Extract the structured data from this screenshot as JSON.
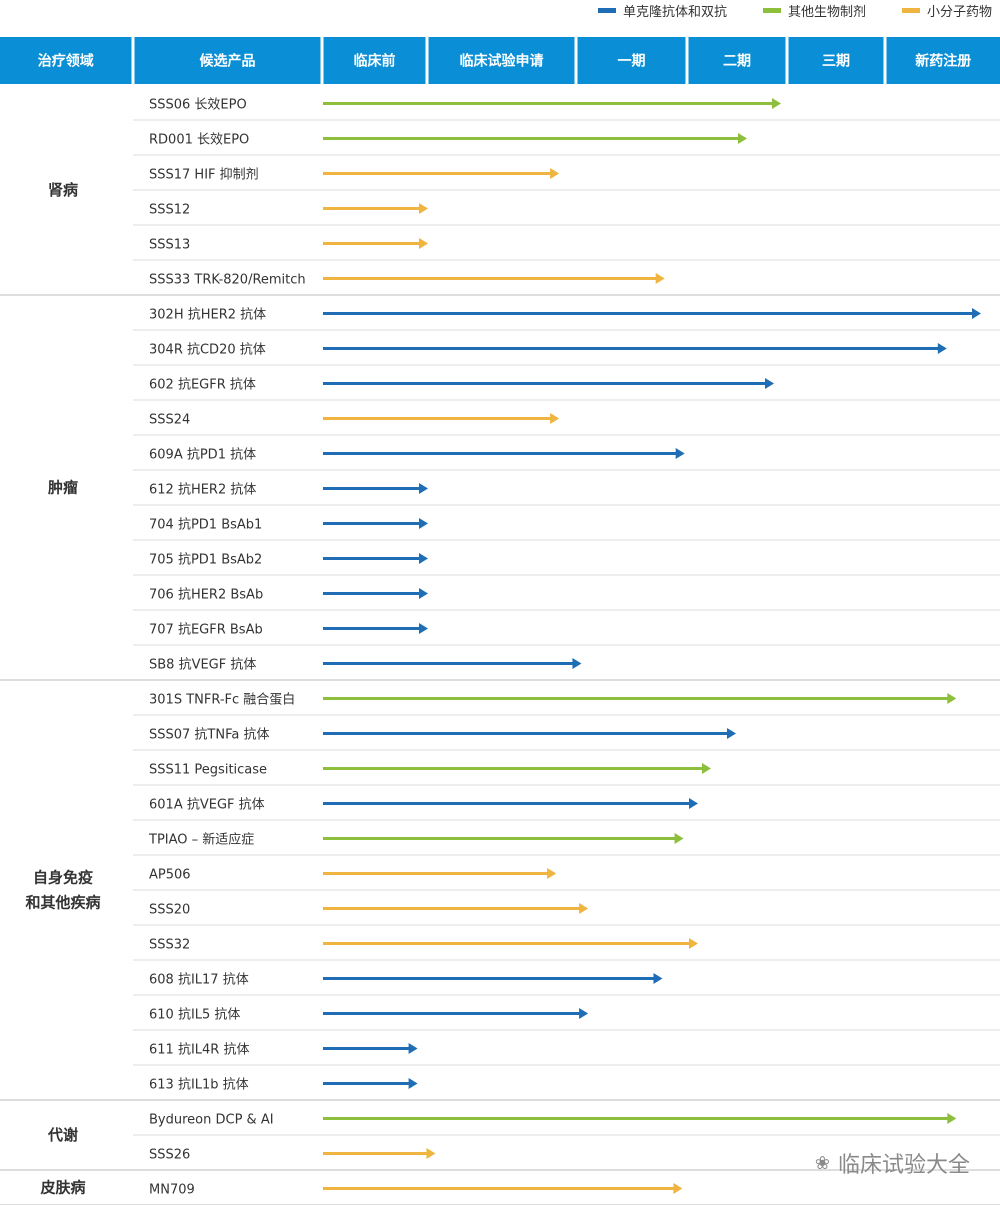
{
  "legend": [
    {
      "label": "单克隆抗体和双抗",
      "color": "#1f6eb5"
    },
    {
      "label": "其他生物制剂",
      "color": "#8dbf3d"
    },
    {
      "label": "小分子药物",
      "color": "#f0b440"
    }
  ],
  "watermark": {
    "text": "临床试验大全",
    "icon": "wechat-icon"
  },
  "chart_data": {
    "type": "bar",
    "orientation": "horizontal",
    "columns": [
      "治疗领域",
      "候选产品",
      "临床前",
      "临床试验申请",
      "一期",
      "二期",
      "三期",
      "新药注册"
    ],
    "stages": [
      "临床前",
      "临床试验申请",
      "一期",
      "二期",
      "三期",
      "新药注册"
    ],
    "x_range": [
      0,
      6
    ],
    "areas": [
      {
        "name": "肾病",
        "products": [
          {
            "name": "SSS06 长效EPO",
            "type": 1,
            "progress": 3.93
          },
          {
            "name": "RD001 长效EPO",
            "type": 1,
            "progress": 3.59
          },
          {
            "name": "SSS17 HIF 抑制剂",
            "type": 2,
            "progress": 1.88
          },
          {
            "name": "SSS12",
            "type": 2,
            "progress": 1.0
          },
          {
            "name": "SSS13",
            "type": 2,
            "progress": 1.0
          },
          {
            "name": "SSS33 TRK-820/Remitch",
            "type": 2,
            "progress": 2.79
          }
        ]
      },
      {
        "name": "肿瘤",
        "products": [
          {
            "name": "302H 抗HER2 抗体",
            "type": 0,
            "progress": 6.0
          },
          {
            "name": "304R 抗CD20 抗体",
            "type": 0,
            "progress": 5.64
          },
          {
            "name": "602 抗EGFR 抗体",
            "type": 0,
            "progress": 3.86
          },
          {
            "name": "SSS24",
            "type": 2,
            "progress": 1.88
          },
          {
            "name": "609A 抗PD1 抗体",
            "type": 0,
            "progress": 2.97
          },
          {
            "name": "612 抗HER2 抗体",
            "type": 0,
            "progress": 1.0
          },
          {
            "name": "704 抗PD1 BsAb1",
            "type": 0,
            "progress": 1.0
          },
          {
            "name": "705 抗PD1 BsAb2",
            "type": 0,
            "progress": 1.0
          },
          {
            "name": "706 抗HER2 BsAb",
            "type": 0,
            "progress": 1.0
          },
          {
            "name": "707 抗EGFR BsAb",
            "type": 0,
            "progress": 1.0
          },
          {
            "name": "SB8 抗VEGF 抗体",
            "type": 0,
            "progress": 2.04
          }
        ]
      },
      {
        "name": "自身免疫\n和其他疾病",
        "products": [
          {
            "name": "301S TNFR-Fc 融合蛋白",
            "type": 1,
            "progress": 5.74
          },
          {
            "name": "SSS07 抗TNFa 抗体",
            "type": 0,
            "progress": 3.48
          },
          {
            "name": "SSS11 Pegsiticase",
            "type": 1,
            "progress": 3.23
          },
          {
            "name": "601A 抗VEGF 抗体",
            "type": 0,
            "progress": 3.1
          },
          {
            "name": "TPIAO – 新适应症",
            "type": 1,
            "progress": 2.96
          },
          {
            "name": "AP506",
            "type": 2,
            "progress": 1.86
          },
          {
            "name": "SSS20",
            "type": 2,
            "progress": 2.1
          },
          {
            "name": "SSS32",
            "type": 2,
            "progress": 3.1
          },
          {
            "name": "608 抗IL17 抗体",
            "type": 0,
            "progress": 2.77
          },
          {
            "name": "610 抗IL5 抗体",
            "type": 0,
            "progress": 2.1
          },
          {
            "name": "611 抗IL4R 抗体",
            "type": 0,
            "progress": 0.9
          },
          {
            "name": "613 抗IL1b 抗体",
            "type": 0,
            "progress": 0.9
          }
        ]
      },
      {
        "name": "代谢",
        "products": [
          {
            "name": "Bydureon DCP & AI",
            "type": 1,
            "progress": 5.74
          },
          {
            "name": "SSS26",
            "type": 2,
            "progress": 1.05
          }
        ]
      },
      {
        "name": "皮肤病",
        "products": [
          {
            "name": "MN709",
            "type": 2,
            "progress": 2.95
          }
        ]
      }
    ]
  }
}
